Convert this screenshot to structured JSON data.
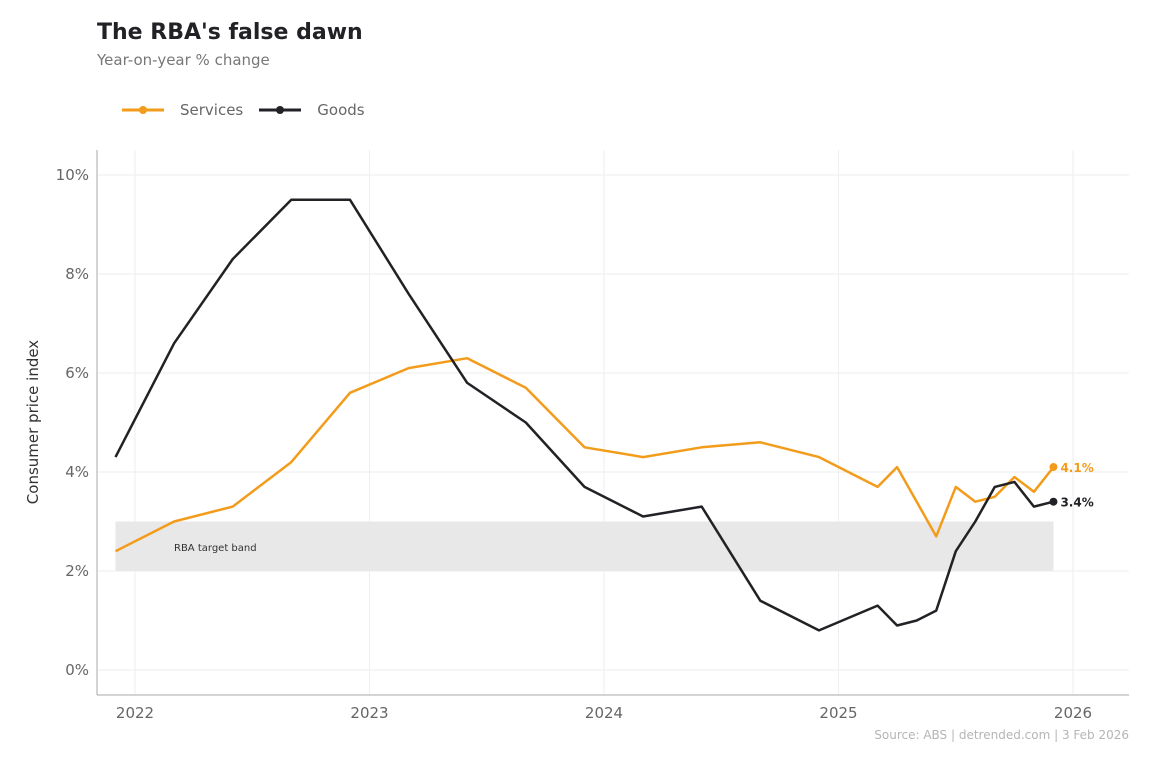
{
  "title": "The RBA's false dawn",
  "subtitle": "Year-on-year % change",
  "source": "Source: ABS | detrended.com | 3 Feb 2026",
  "chart_data": {
    "type": "line",
    "title": "The RBA's false dawn",
    "subtitle": "Year-on-year % change",
    "xlabel": "",
    "ylabel": "Consumer price index",
    "x": [
      "2021-12",
      "2022-03",
      "2022-06",
      "2022-09",
      "2022-12",
      "2023-03",
      "2023-06",
      "2023-09",
      "2023-12",
      "2024-03",
      "2024-06",
      "2024-09",
      "2024-12",
      "2025-03",
      "2025-04",
      "2025-05",
      "2025-06",
      "2025-07",
      "2025-08",
      "2025-09",
      "2025-10",
      "2025-11",
      "2025-12"
    ],
    "series": [
      {
        "name": "Services",
        "color": "#f39c1b",
        "values": [
          2.4,
          3.0,
          3.3,
          4.2,
          5.6,
          6.1,
          6.3,
          5.7,
          4.5,
          4.3,
          4.5,
          4.6,
          4.3,
          3.7,
          4.1,
          3.4,
          2.7,
          3.7,
          3.4,
          3.5,
          3.9,
          3.6,
          4.1
        ],
        "end_label": "4.1%"
      },
      {
        "name": "Goods",
        "color": "#222226",
        "values": [
          4.3,
          6.6,
          8.3,
          9.5,
          9.5,
          7.6,
          5.8,
          5.0,
          3.7,
          3.1,
          3.3,
          1.4,
          0.8,
          1.3,
          0.9,
          1.0,
          1.2,
          2.4,
          3.0,
          3.7,
          3.8,
          3.3,
          3.4
        ],
        "end_label": "3.4%"
      }
    ],
    "xlim": [
      "2021-11",
      "2026-03"
    ],
    "ylim": [
      -0.5,
      10.5
    ],
    "x_ticks": [
      "2022",
      "2023",
      "2024",
      "2025",
      "2026"
    ],
    "y_ticks": [
      0,
      2,
      4,
      6,
      8,
      10
    ],
    "y_tick_labels": [
      "0%",
      "2%",
      "4%",
      "6%",
      "8%",
      "10%"
    ],
    "grid": true,
    "legend_position": "top-left",
    "band": {
      "label": "RBA target band",
      "low": 2,
      "high": 3,
      "from": "2021-12",
      "to": "2025-12",
      "color": "#e8e8e8"
    }
  }
}
